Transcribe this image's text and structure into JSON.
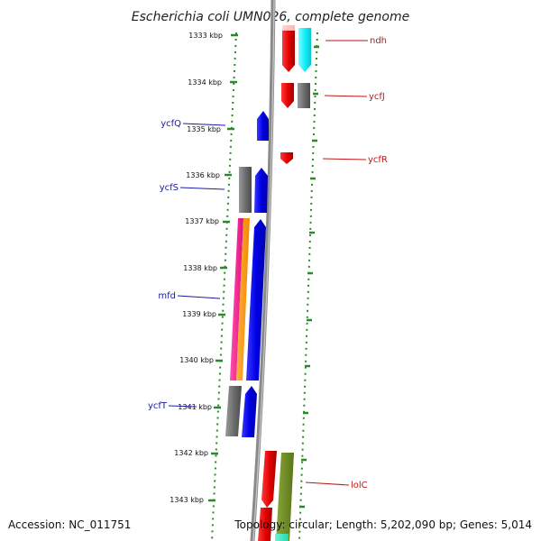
{
  "title": "Escherichia coli UMN026, complete genome",
  "footer": {
    "accession": "Accession: NC_011751",
    "topology": "Topology: circular; Length: 5,202,090 bp; Genes: 5,014"
  },
  "colors": {
    "backbone": "#7a7a7a",
    "dots": "#2a8a2a",
    "left_label": "#1a1aa8",
    "right_label": "#c41616"
  },
  "scale_ticks": [
    {
      "label": "1333 kbp"
    },
    {
      "label": "1334 kbp"
    },
    {
      "label": "1335 kbp"
    },
    {
      "label": "1336 kbp"
    },
    {
      "label": "1337 kbp"
    },
    {
      "label": "1338 kbp"
    },
    {
      "label": "1339 kbp"
    },
    {
      "label": "1340 kbp"
    },
    {
      "label": "1341 kbp"
    },
    {
      "label": "1342 kbp"
    },
    {
      "label": "1343 kbp"
    }
  ],
  "gene_labels_left": [
    {
      "name": "ycfQ"
    },
    {
      "name": "ycfS"
    },
    {
      "name": "mfd"
    },
    {
      "name": "ycfT"
    }
  ],
  "gene_labels_right": [
    {
      "name": "ndh"
    },
    {
      "name": "ycfJ"
    },
    {
      "name": "ycfR"
    },
    {
      "name": "lolC"
    }
  ]
}
